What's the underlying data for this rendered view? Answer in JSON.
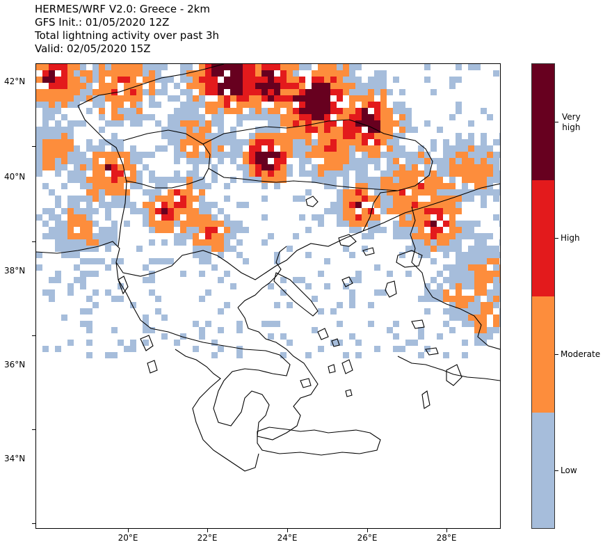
{
  "title": {
    "line1": "HERMES/WRF V2.0: Greece - 2km",
    "line2": "GFS Init.: 01/05/2020 12Z",
    "line3": "Total lightning activity over past 3h",
    "line4": "Valid: 02/05/2020 15Z"
  },
  "map": {
    "lat_labels": [
      "42°N",
      "40°N",
      "38°N",
      "36°N",
      "34°N"
    ],
    "lon_labels": [
      "20°E",
      "22°E",
      "24°E",
      "26°E",
      "28°E"
    ]
  },
  "legend": {
    "levels": [
      {
        "label_line1": "Very",
        "label_line2": "high",
        "color": "#67001f"
      },
      {
        "label": "High",
        "color": "#e31a1c"
      },
      {
        "label": "Moderate",
        "color": "#fd8d3c"
      },
      {
        "label": "Low",
        "color": "#a6bddb"
      }
    ]
  },
  "colors": {
    "low": "#a6bddb",
    "moderate": "#fd8d3c",
    "high": "#e31a1c",
    "very_high": "#67001f",
    "coast": "#000000"
  }
}
